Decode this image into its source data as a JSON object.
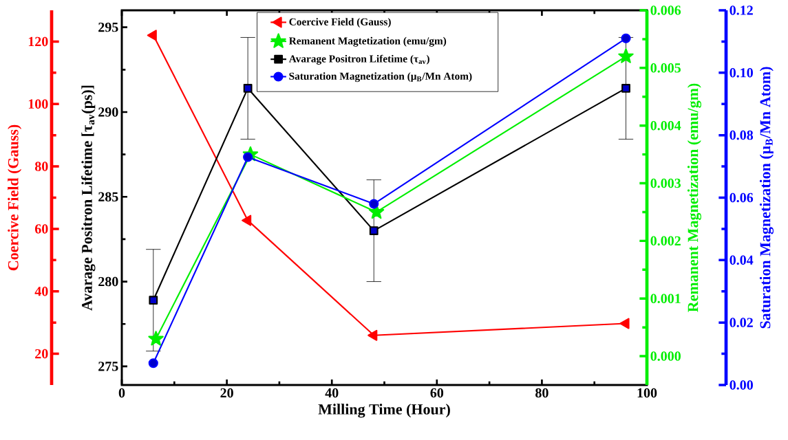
{
  "chart_data": [
    {
      "type": "line",
      "xlabel": "Milling Time (Hour)",
      "ylabel": "Avarage Positron Lifetime [τ$_{av}$(ps)]",
      "y2label": "Coercive Field (Gauss)",
      "y3label": "Remanent Magnetization (emu/gm)",
      "xlim": [
        0,
        100
      ],
      "xticks": [
        0,
        20,
        40,
        60,
        80,
        100
      ],
      "ylim": [
        273.9,
        296
      ],
      "yticks": [
        275,
        280,
        285,
        290,
        295
      ],
      "y2lim": [
        10,
        130
      ],
      "y2ticks": [
        20,
        40,
        60,
        80,
        100,
        120
      ],
      "y3lim": [
        -0.0005,
        0.006
      ],
      "y3ticks": [
        {
          "value": 0,
          "label": "0.000"
        },
        {
          "value": 0.001,
          "label": "0.001"
        },
        {
          "value": 0.002,
          "label": "0.002"
        },
        {
          "value": 0.003,
          "label": "0.003"
        },
        {
          "value": 0.004,
          "label": "0.004"
        },
        {
          "value": 0.005,
          "label": "0.005"
        },
        {
          "value": 0.006,
          "label": "0.006"
        }
      ],
      "legend": "top",
      "series": [
        {
          "name": "Coercive Field (Gauss)",
          "color": "#ff0000",
          "axis": "y2",
          "marker": "triangle",
          "x": [
            6,
            24,
            48,
            96
          ],
          "values": [
            122,
            62.7,
            25.9,
            29.7
          ]
        },
        {
          "name": "Remanent Magtetization (emu/gm)",
          "color": "#00ee00",
          "axis": "y3",
          "marker": "star",
          "x": [
            6.5,
            24.5,
            48.5,
            96
          ],
          "values": [
            0.0003,
            0.0035,
            0.0025,
            0.0052
          ]
        },
        {
          "name": "Avarage Positron Lifetime (τ$_{av}$)",
          "color": "#000000",
          "marker": "square",
          "x": [
            6,
            24,
            48,
            96
          ],
          "values": [
            278.9,
            291.4,
            283,
            291.4
          ],
          "errors": [
            3,
            3,
            3,
            3
          ]
        }
      ]
    },
    {
      "type": "line",
      "ylabel": "Saturation Magnetization (μ$_{B}$/Mn Atom)",
      "xlim": [
        0,
        100
      ],
      "ylim": [
        0,
        0.12
      ],
      "yticks": [
        {
          "value": 0,
          "label": "0.00"
        },
        {
          "value": 0.02,
          "label": "0.02"
        },
        {
          "value": 0.04,
          "label": "0.04"
        },
        {
          "value": 0.06,
          "label": "0.06"
        },
        {
          "value": 0.08,
          "label": "0.08"
        },
        {
          "value": 0.1,
          "label": "0.10"
        },
        {
          "value": 0.12,
          "label": "0.12"
        }
      ],
      "tick_labels": "y",
      "legend": "top",
      "series": [
        {
          "name": "Saturation Magnetization (μ$_{B}$/Mn Atom)",
          "color": "#0000ff",
          "marker": "circle",
          "x": [
            6,
            24,
            48,
            96
          ],
          "values": [
            0.007,
            0.073,
            0.058,
            0.111
          ]
        }
      ]
    }
  ]
}
